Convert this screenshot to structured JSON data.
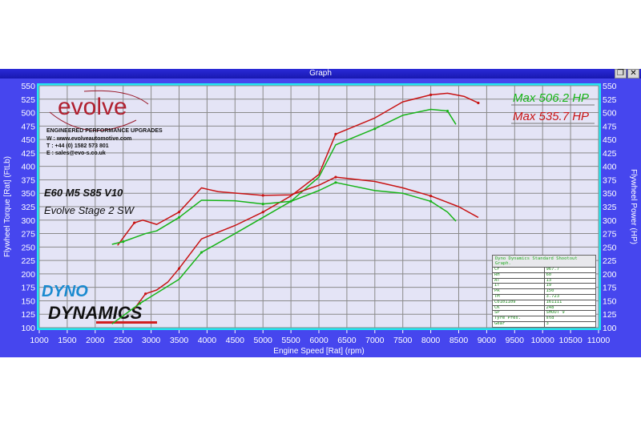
{
  "window": {
    "title": "Graph",
    "restore_icon": "restore-icon",
    "close_icon": "close-icon"
  },
  "branding": {
    "logo": "evolve",
    "tagline": "ENGINEERED PERFORMANCE UPGRADES",
    "web": "W : www.evolveautomotive.com",
    "tel": "T : +44 (0) 1582 573 801",
    "email": "E : sales@evo-s.co.uk",
    "dyno_logo_top": "DYNO",
    "dyno_logo_bottom": "DYNAMICS"
  },
  "annotations": {
    "car": "E60 M5 S85 V10",
    "tune": "Evolve Stage 2 SW",
    "max_green": "Max 506.2 HP",
    "max_red": "Max 535.7 HP"
  },
  "info_table": {
    "title": "Dyno Dynamics Standard Shootout Graph.",
    "rows": [
      [
        "CF",
        "967.7"
      ],
      [
        "RH",
        "60"
      ],
      [
        "AT",
        "13"
      ],
      [
        "IT",
        "19"
      ],
      [
        "PR",
        "150"
      ],
      [
        "TM",
        "3.723"
      ],
      [
        "C0101109",
        "161111"
      ],
      [
        "CK",
        "248"
      ],
      [
        "SP",
        "SHOOT 9"
      ],
      [
        "Tyre Pres.",
        "std"
      ],
      [
        "Gear",
        "3"
      ]
    ]
  },
  "chart_data": {
    "type": "line",
    "xlabel": "Engine Speed [Rat] (rpm)",
    "ylabel": "Flywheel Torque [Rat] (FtLb)",
    "ylabel_right": "Flywheel Power (HP)",
    "xlim": [
      1000,
      11000
    ],
    "ylim": [
      100,
      550
    ],
    "ylim_right": [
      100,
      550
    ],
    "xticks": [
      1000,
      1500,
      2000,
      2500,
      3000,
      3500,
      4000,
      4500,
      5000,
      5500,
      6000,
      6500,
      7000,
      7500,
      8000,
      8500,
      9000,
      9500,
      10000,
      10500,
      11000
    ],
    "yticks": [
      100,
      125,
      150,
      175,
      200,
      225,
      250,
      275,
      300,
      325,
      350,
      375,
      400,
      425,
      450,
      475,
      500,
      525,
      550
    ],
    "grid": true,
    "colors": {
      "red": "#c81414",
      "green": "#18b418",
      "plot_bg": "#e4e4f6",
      "frame": "#22e6f0",
      "window_bg": "#4646ee"
    },
    "series": [
      {
        "color": "red",
        "quantity": "power",
        "x": [
          2700,
          2900,
          3100,
          3300,
          3500,
          3900,
          4500,
          5000,
          5500,
          6000,
          6300,
          7000,
          7500,
          8000,
          8300,
          8600,
          8850
        ],
        "y": [
          135,
          163,
          170,
          185,
          210,
          265,
          290,
          315,
          345,
          385,
          460,
          490,
          520,
          533,
          536,
          530,
          518
        ]
      },
      {
        "color": "green",
        "quantity": "power",
        "x": [
          2300,
          2800,
          3000,
          3500,
          3900,
          4500,
          5000,
          5500,
          6000,
          6300,
          7000,
          7500,
          8000,
          8300,
          8450
        ],
        "y": [
          107,
          145,
          158,
          190,
          240,
          275,
          305,
          335,
          380,
          440,
          470,
          495,
          506,
          503,
          478
        ]
      },
      {
        "color": "red",
        "quantity": "torque",
        "x": [
          2400,
          2700,
          2850,
          3100,
          3500,
          3900,
          4200,
          5000,
          5500,
          6000,
          6300,
          7000,
          7500,
          8000,
          8500,
          8850
        ],
        "y": [
          253,
          295,
          300,
          292,
          315,
          360,
          353,
          346,
          347,
          365,
          380,
          372,
          360,
          345,
          325,
          305
        ]
      },
      {
        "color": "green",
        "quantity": "torque",
        "x": [
          2300,
          2500,
          2900,
          3100,
          3500,
          3900,
          4500,
          5000,
          5500,
          6000,
          6300,
          7000,
          7500,
          8000,
          8300,
          8450
        ],
        "y": [
          255,
          260,
          275,
          280,
          305,
          337,
          336,
          330,
          335,
          355,
          370,
          355,
          350,
          335,
          315,
          298
        ]
      }
    ]
  }
}
